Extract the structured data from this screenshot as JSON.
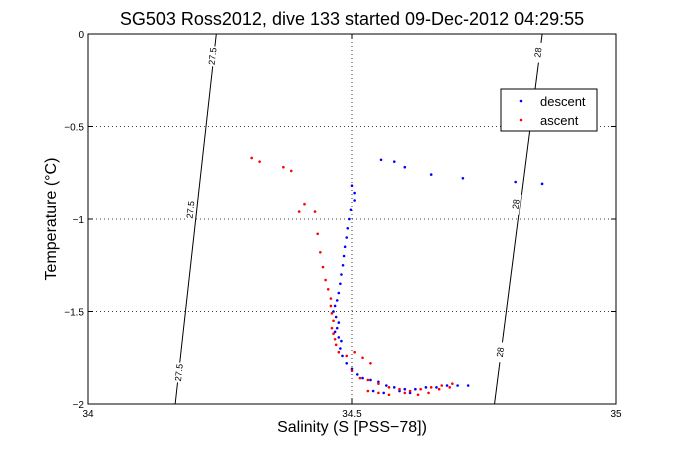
{
  "chart_data": {
    "type": "scatter",
    "title": "SG503 Ross2012, dive 133 started 09-Dec-2012 04:29:55",
    "xlabel": "Salinity (S [PSS−78])",
    "ylabel": "Temperature (°C)",
    "xlim": [
      34,
      35
    ],
    "ylim": [
      -2,
      0
    ],
    "xticks": [
      "34",
      "34.5",
      "35"
    ],
    "yticks": [
      "0",
      "−0.5",
      "−1",
      "−1.5",
      "−2"
    ],
    "grid": true,
    "legend": {
      "position": "top-right",
      "entries": [
        "descent",
        "ascent"
      ]
    },
    "colors": {
      "descent": "#0000ff",
      "ascent": "#ff0000",
      "contour": "#000000"
    },
    "density_contours": [
      {
        "label": "27.5",
        "points": [
          [
            34.165,
            -2
          ],
          [
            34.243,
            0
          ]
        ],
        "label_positions": [
          [
            34.172,
            -1.83
          ],
          [
            34.194,
            -0.95
          ],
          [
            34.236,
            -0.12
          ]
        ]
      },
      {
        "label": "28",
        "points": [
          [
            34.77,
            -2
          ],
          [
            34.86,
            0
          ]
        ],
        "label_positions": [
          [
            34.781,
            -1.72
          ],
          [
            34.811,
            -0.92
          ],
          [
            34.852,
            -0.1
          ]
        ]
      }
    ],
    "series": [
      {
        "name": "descent",
        "points": [
          [
            34.555,
            -0.68
          ],
          [
            34.58,
            -0.69
          ],
          [
            34.6,
            -0.72
          ],
          [
            34.65,
            -0.76
          ],
          [
            34.71,
            -0.78
          ],
          [
            34.81,
            -0.8
          ],
          [
            34.86,
            -0.81
          ],
          [
            34.5,
            -0.82
          ],
          [
            34.505,
            -0.86
          ],
          [
            34.505,
            -0.9
          ],
          [
            34.498,
            -0.95
          ],
          [
            34.495,
            -1.0
          ],
          [
            34.492,
            -1.05
          ],
          [
            34.49,
            -1.1
          ],
          [
            34.487,
            -1.15
          ],
          [
            34.485,
            -1.2
          ],
          [
            34.483,
            -1.25
          ],
          [
            34.48,
            -1.3
          ],
          [
            34.478,
            -1.35
          ],
          [
            34.475,
            -1.4
          ],
          [
            34.472,
            -1.44
          ],
          [
            34.468,
            -1.47
          ],
          [
            34.465,
            -1.5
          ],
          [
            34.47,
            -1.53
          ],
          [
            34.475,
            -1.56
          ],
          [
            34.472,
            -1.59
          ],
          [
            34.468,
            -1.61
          ],
          [
            34.475,
            -1.64
          ],
          [
            34.48,
            -1.66
          ],
          [
            34.478,
            -1.7
          ],
          [
            34.482,
            -1.74
          ],
          [
            34.49,
            -1.78
          ],
          [
            34.5,
            -1.81
          ],
          [
            34.51,
            -1.84
          ],
          [
            34.52,
            -1.86
          ],
          [
            34.535,
            -1.87
          ],
          [
            34.55,
            -1.88
          ],
          [
            34.565,
            -1.9
          ],
          [
            34.58,
            -1.91
          ],
          [
            34.6,
            -1.92
          ],
          [
            34.62,
            -1.92
          ],
          [
            34.64,
            -1.91
          ],
          [
            34.66,
            -1.91
          ],
          [
            34.68,
            -1.9
          ],
          [
            34.7,
            -1.9
          ],
          [
            34.72,
            -1.9
          ],
          [
            34.54,
            -1.93
          ],
          [
            34.56,
            -1.94
          ],
          [
            34.59,
            -1.93
          ],
          [
            34.61,
            -1.94
          ]
        ]
      },
      {
        "name": "ascent",
        "points": [
          [
            34.31,
            -0.67
          ],
          [
            34.325,
            -0.69
          ],
          [
            34.37,
            -0.72
          ],
          [
            34.385,
            -0.74
          ],
          [
            34.41,
            -0.92
          ],
          [
            34.4,
            -0.96
          ],
          [
            34.43,
            -0.96
          ],
          [
            34.435,
            -1.08
          ],
          [
            34.44,
            -1.18
          ],
          [
            34.445,
            -1.26
          ],
          [
            34.45,
            -1.33
          ],
          [
            34.455,
            -1.38
          ],
          [
            34.46,
            -1.43
          ],
          [
            34.46,
            -1.47
          ],
          [
            34.462,
            -1.51
          ],
          [
            34.465,
            -1.55
          ],
          [
            34.462,
            -1.59
          ],
          [
            34.465,
            -1.62
          ],
          [
            34.468,
            -1.65
          ],
          [
            34.47,
            -1.68
          ],
          [
            34.475,
            -1.72
          ],
          [
            34.49,
            -1.74
          ],
          [
            34.505,
            -1.72
          ],
          [
            34.52,
            -1.75
          ],
          [
            34.535,
            -1.78
          ],
          [
            34.5,
            -1.82
          ],
          [
            34.515,
            -1.86
          ],
          [
            34.53,
            -1.87
          ],
          [
            34.55,
            -1.89
          ],
          [
            34.57,
            -1.91
          ],
          [
            34.59,
            -1.92
          ],
          [
            34.61,
            -1.93
          ],
          [
            34.63,
            -1.92
          ],
          [
            34.65,
            -1.91
          ],
          [
            34.67,
            -1.9
          ],
          [
            34.69,
            -1.89
          ],
          [
            34.55,
            -1.94
          ],
          [
            34.57,
            -1.95
          ],
          [
            34.6,
            -1.94
          ],
          [
            34.625,
            -1.95
          ],
          [
            34.645,
            -1.94
          ],
          [
            34.665,
            -1.92
          ],
          [
            34.685,
            -1.91
          ],
          [
            34.53,
            -1.93
          ]
        ]
      }
    ]
  }
}
